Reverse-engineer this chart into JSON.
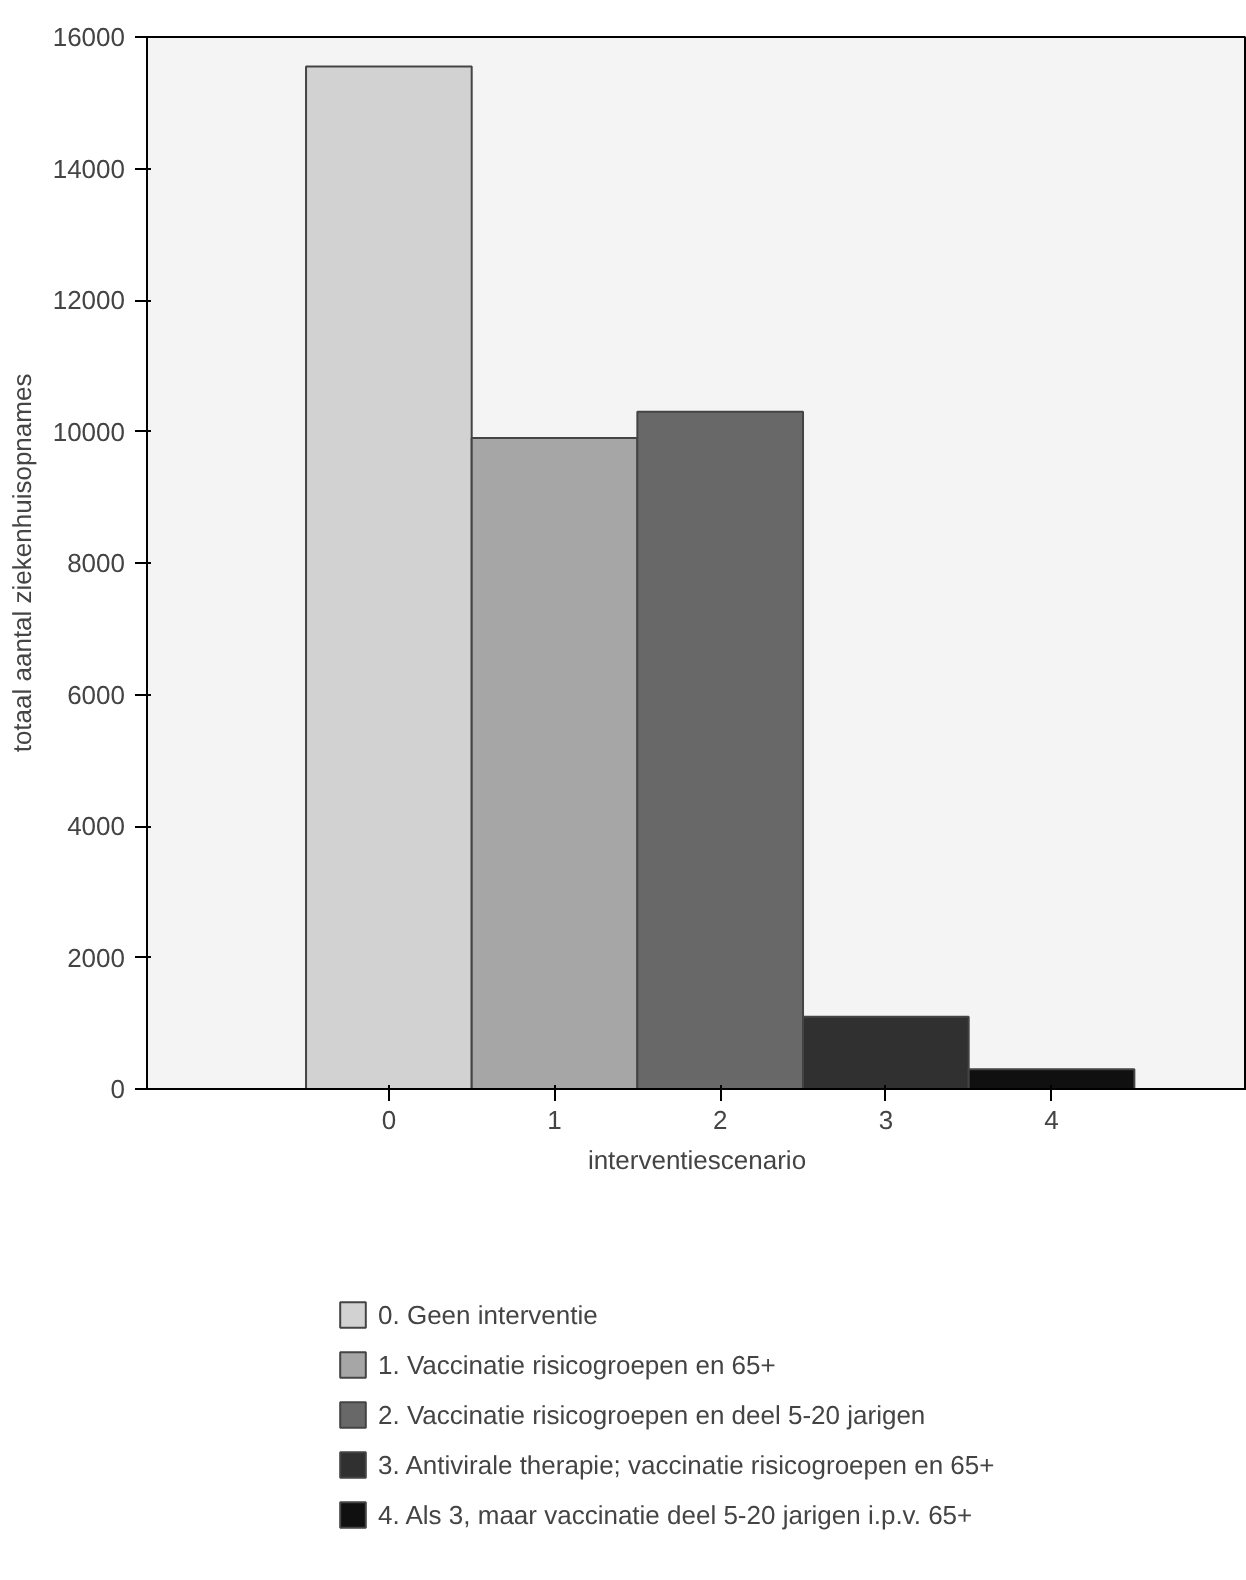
{
  "chart_data": {
    "type": "bar",
    "xlabel": "interventiescenario",
    "ylabel": "totaal aantal ziekenhuisopnames",
    "categories": [
      "0",
      "1",
      "2",
      "3",
      "4"
    ],
    "series": [
      {
        "name": "0. Geen interventie",
        "color": "#d2d2d2",
        "values": [
          15550,
          null,
          null,
          null,
          null
        ]
      },
      {
        "name": "1. Vaccinatie risicogroepen en 65+",
        "color": "#a6a6a6",
        "values": [
          null,
          9900,
          null,
          null,
          null
        ]
      },
      {
        "name": "2. Vaccinatie risicogroepen en deel 5-20 jarigen",
        "color": "#686868",
        "values": [
          null,
          null,
          10300,
          null,
          null
        ]
      },
      {
        "name": "3. Antivirale therapie; vaccinatie risicogroepen en 65+",
        "color": "#303030",
        "values": [
          null,
          null,
          null,
          1100,
          null
        ]
      },
      {
        "name": "4. Als 3, maar vaccinatie deel 5-20 jarigen i.p.v. 65+",
        "color": "#101010",
        "values": [
          null,
          null,
          null,
          null,
          300
        ]
      }
    ],
    "ylim": [
      0,
      16000
    ],
    "yticks": [
      0,
      2000,
      4000,
      6000,
      8000,
      10000,
      12000,
      14000,
      16000
    ],
    "grid": false,
    "legend": "bottom"
  }
}
